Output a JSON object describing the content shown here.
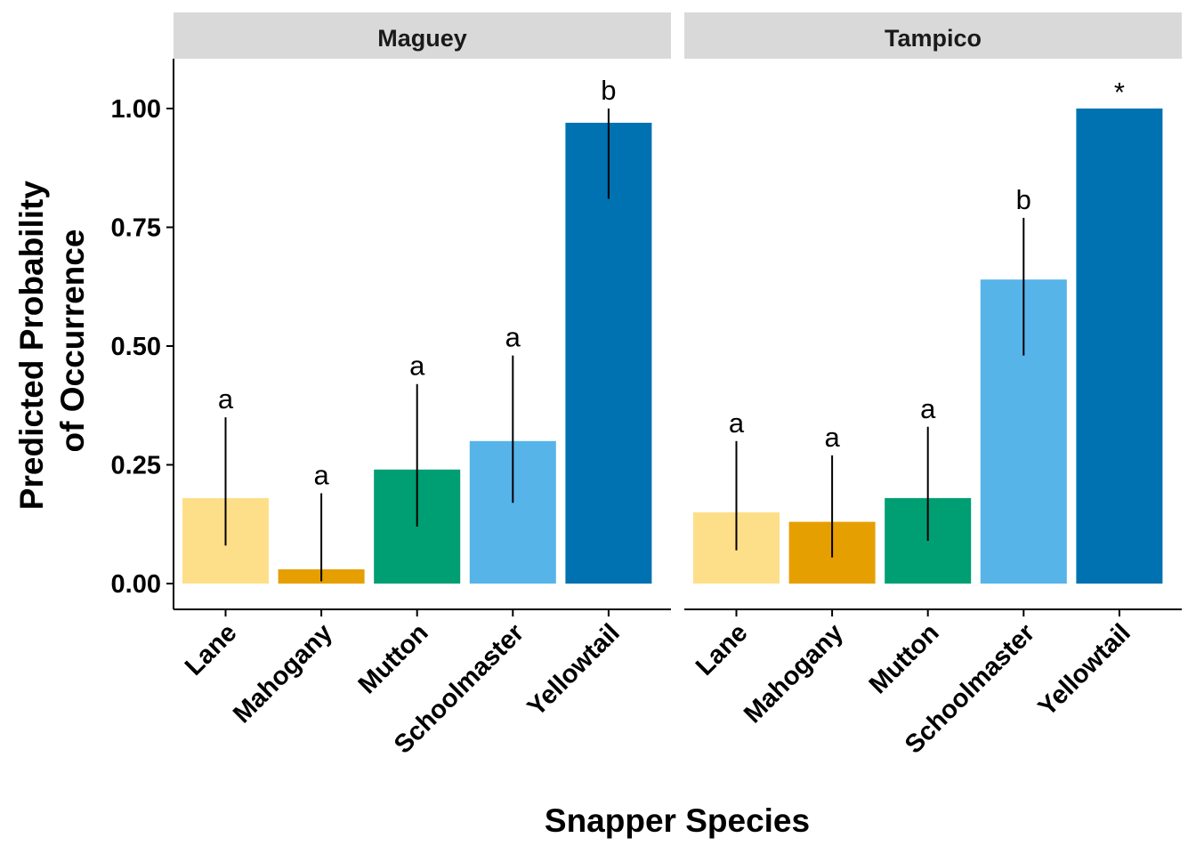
{
  "chart_data": {
    "type": "bar",
    "xlabel": "Snapper Species",
    "ylabel": [
      "Predicted Probability",
      "of Occurrence"
    ],
    "ylim": [
      -0.05,
      1.1
    ],
    "yticks": [
      "0.00",
      "0.25",
      "0.50",
      "0.75",
      "1.00"
    ],
    "categories": [
      "Lane",
      "Mahogany",
      "Mutton",
      "Schoolmaster",
      "Yellowtail"
    ],
    "colors": [
      "#FEDF89",
      "#E69F00",
      "#009E73",
      "#56B4E9",
      "#0072B2"
    ],
    "panels": [
      {
        "name": "Maguey",
        "values": [
          0.18,
          0.03,
          0.24,
          0.3,
          0.97
        ],
        "lower": [
          0.08,
          0.005,
          0.12,
          0.17,
          0.81
        ],
        "upper": [
          0.35,
          0.19,
          0.42,
          0.48,
          1.0
        ],
        "letters": [
          "a",
          "a",
          "a",
          "a",
          "b"
        ]
      },
      {
        "name": "Tampico",
        "values": [
          0.15,
          0.13,
          0.18,
          0.64,
          1.0
        ],
        "lower": [
          0.07,
          0.055,
          0.09,
          0.48,
          null
        ],
        "upper": [
          0.3,
          0.27,
          0.33,
          0.77,
          null
        ],
        "letters": [
          "a",
          "a",
          "a",
          "b",
          "*"
        ]
      }
    ],
    "grid": false,
    "legend": "none"
  }
}
